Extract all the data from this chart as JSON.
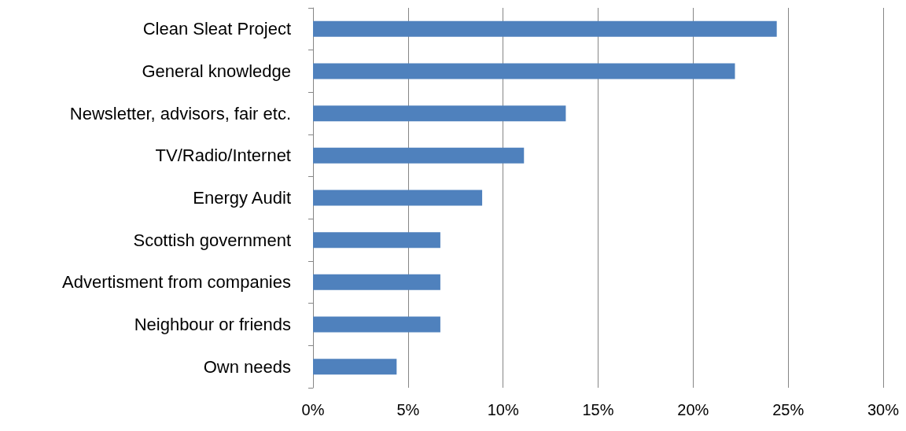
{
  "chart_data": {
    "type": "bar",
    "orientation": "horizontal",
    "categories": [
      "Clean Sleat Project",
      "General knowledge",
      "Newsletter, advisors, fair etc.",
      "TV/Radio/Internet",
      "Energy Audit",
      "Scottish government",
      "Advertisment from companies",
      "Neighbour or friends",
      "Own needs"
    ],
    "values": [
      24.4,
      22.2,
      13.3,
      11.1,
      8.9,
      6.7,
      6.7,
      6.7,
      4.4
    ],
    "color": "#4f81bd",
    "xlim": [
      0,
      30
    ],
    "xticks": [
      {
        "value": 0,
        "label": "0%"
      },
      {
        "value": 5,
        "label": "5%"
      },
      {
        "value": 10,
        "label": "10%"
      },
      {
        "value": 15,
        "label": "15%"
      },
      {
        "value": 20,
        "label": "20%"
      },
      {
        "value": 25,
        "label": "25%"
      },
      {
        "value": 30,
        "label": "30%"
      }
    ],
    "grid": "x"
  }
}
